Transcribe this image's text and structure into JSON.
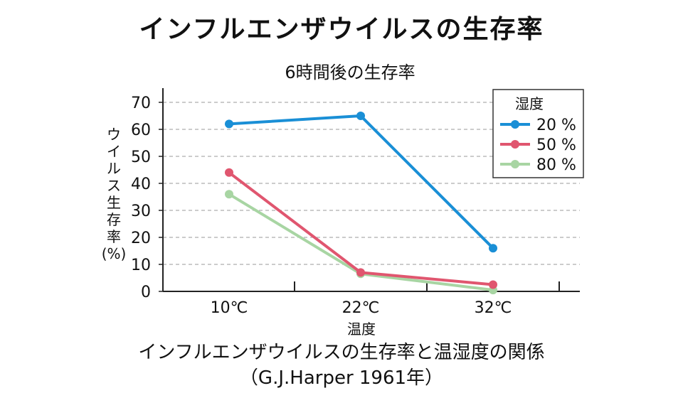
{
  "header": {
    "title": "インフルエンザウイルスの生存率"
  },
  "chart_data": {
    "type": "line",
    "title": "6時間後の生存率",
    "xlabel": "温度",
    "ylabel": "ウイルス生存率",
    "ylabel_unit": "(%)",
    "categories": [
      "10℃",
      "22℃",
      "32℃"
    ],
    "ylim": [
      0,
      70
    ],
    "yticks": [
      0,
      10,
      20,
      30,
      40,
      50,
      60,
      70
    ],
    "grid": true,
    "legend": {
      "title": "湿度",
      "placement": "top-right"
    },
    "series": [
      {
        "name": "20 %",
        "color": "#1a8fd6",
        "values": [
          62,
          65,
          16
        ]
      },
      {
        "name": "50 %",
        "color": "#e0566f",
        "values": [
          44,
          7,
          2.5
        ]
      },
      {
        "name": "80 %",
        "color": "#a8d5a3",
        "values": [
          36,
          6.5,
          0.5
        ]
      }
    ]
  },
  "caption": {
    "line1": "インフルエンザウイルスの生存率と温湿度の関係",
    "line2": "（G.J.Harper 1961年）"
  }
}
